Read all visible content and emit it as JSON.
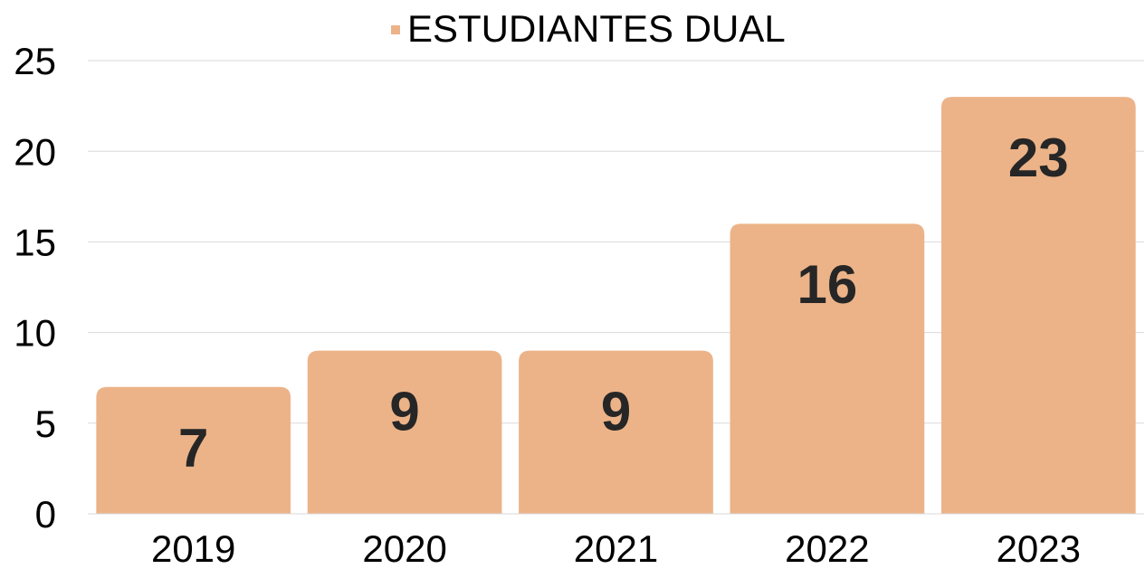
{
  "chart_data": {
    "type": "bar",
    "legend": "ESTUDIANTES DUAL",
    "categories": [
      "2019",
      "2020",
      "2021",
      "2022",
      "2023"
    ],
    "values": [
      7,
      9,
      9,
      16,
      23
    ],
    "color": "#ecb388",
    "ylim": [
      0,
      25
    ],
    "yticks": [
      0,
      5,
      10,
      15,
      20,
      25
    ],
    "grid": true
  }
}
